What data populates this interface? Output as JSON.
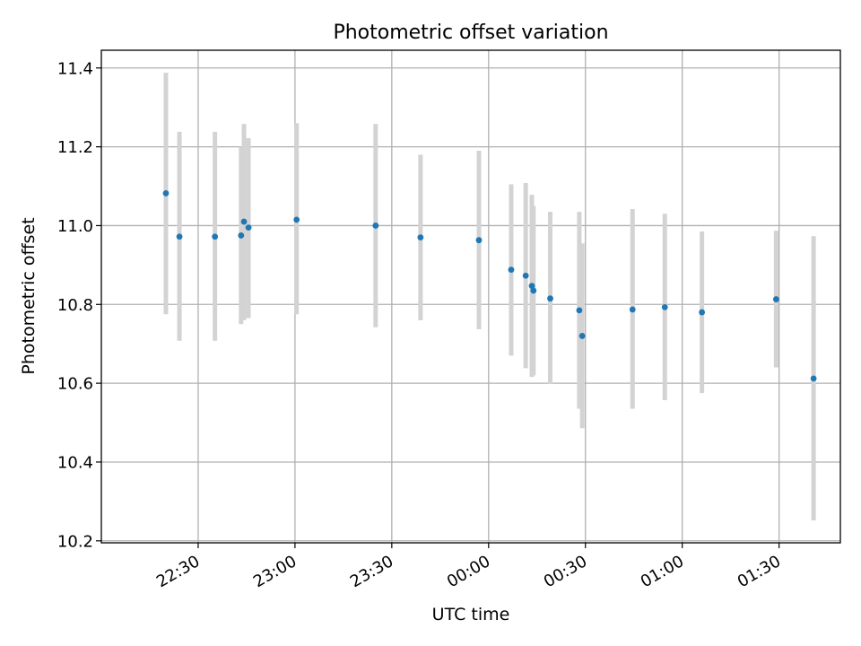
{
  "chart_data": {
    "type": "scatter",
    "title": "Photometric offset variation",
    "xlabel": "UTC time",
    "ylabel": "Photometric offset",
    "x_ticks": [
      "22:30",
      "23:00",
      "23:30",
      "00:00",
      "00:30",
      "01:00",
      "01:30"
    ],
    "x_tick_minutes": [
      1350,
      1380,
      1410,
      1440,
      1470,
      1500,
      1530
    ],
    "x_range_minutes": [
      1320,
      1549
    ],
    "y_ticks": [
      "10.2",
      "10.4",
      "10.6",
      "10.8",
      "11.0",
      "11.2",
      "11.4"
    ],
    "ylim": [
      10.195,
      11.445
    ],
    "grid": true,
    "colors": {
      "point": "#1f77b4",
      "errorbar": "#d3d3d3",
      "grid": "#b0b0b0"
    },
    "points": [
      {
        "time": "22:20",
        "minutes": 1340.0,
        "y": 11.082,
        "err_low": 10.775,
        "err_high": 11.388
      },
      {
        "time": "22:24",
        "minutes": 1344.2,
        "y": 10.972,
        "err_low": 10.708,
        "err_high": 11.238
      },
      {
        "time": "22:35",
        "minutes": 1355.2,
        "y": 10.972,
        "err_low": 10.708,
        "err_high": 11.238
      },
      {
        "time": "22:43",
        "minutes": 1363.3,
        "y": 10.975,
        "err_low": 10.75,
        "err_high": 11.2
      },
      {
        "time": "22:44",
        "minutes": 1364.2,
        "y": 11.01,
        "err_low": 10.76,
        "err_high": 11.258
      },
      {
        "time": "22:45",
        "minutes": 1365.6,
        "y": 10.995,
        "err_low": 10.765,
        "err_high": 11.222
      },
      {
        "time": "23:00",
        "minutes": 1380.5,
        "y": 11.015,
        "err_low": 10.775,
        "err_high": 11.26
      },
      {
        "time": "23:25",
        "minutes": 1405.0,
        "y": 11.0,
        "err_low": 10.742,
        "err_high": 11.258
      },
      {
        "time": "23:39",
        "minutes": 1418.9,
        "y": 10.97,
        "err_low": 10.76,
        "err_high": 11.18
      },
      {
        "time": "23:57",
        "minutes": 1437.0,
        "y": 10.963,
        "err_low": 10.737,
        "err_high": 11.19
      },
      {
        "time": "00:07",
        "minutes": 1447.0,
        "y": 10.888,
        "err_low": 10.67,
        "err_high": 11.105
      },
      {
        "time": "00:11",
        "minutes": 1451.5,
        "y": 10.873,
        "err_low": 10.638,
        "err_high": 11.108
      },
      {
        "time": "00:13",
        "minutes": 1453.4,
        "y": 10.847,
        "err_low": 10.616,
        "err_high": 11.078
      },
      {
        "time": "00:14",
        "minutes": 1453.9,
        "y": 10.835,
        "err_low": 10.62,
        "err_high": 11.05
      },
      {
        "time": "00:19",
        "minutes": 1459.1,
        "y": 10.815,
        "err_low": 10.598,
        "err_high": 11.035
      },
      {
        "time": "00:28",
        "minutes": 1468.1,
        "y": 10.785,
        "err_low": 10.535,
        "err_high": 11.035
      },
      {
        "time": "00:29",
        "minutes": 1469.0,
        "y": 10.72,
        "err_low": 10.486,
        "err_high": 10.955
      },
      {
        "time": "00:45",
        "minutes": 1484.6,
        "y": 10.787,
        "err_low": 10.535,
        "err_high": 11.042
      },
      {
        "time": "00:55",
        "minutes": 1494.6,
        "y": 10.793,
        "err_low": 10.557,
        "err_high": 11.03
      },
      {
        "time": "01:06",
        "minutes": 1506.1,
        "y": 10.78,
        "err_low": 10.575,
        "err_high": 10.985
      },
      {
        "time": "01:29",
        "minutes": 1529.1,
        "y": 10.813,
        "err_low": 10.64,
        "err_high": 10.987
      },
      {
        "time": "01:40",
        "minutes": 1540.7,
        "y": 10.612,
        "err_low": 10.252,
        "err_high": 10.973
      }
    ]
  }
}
